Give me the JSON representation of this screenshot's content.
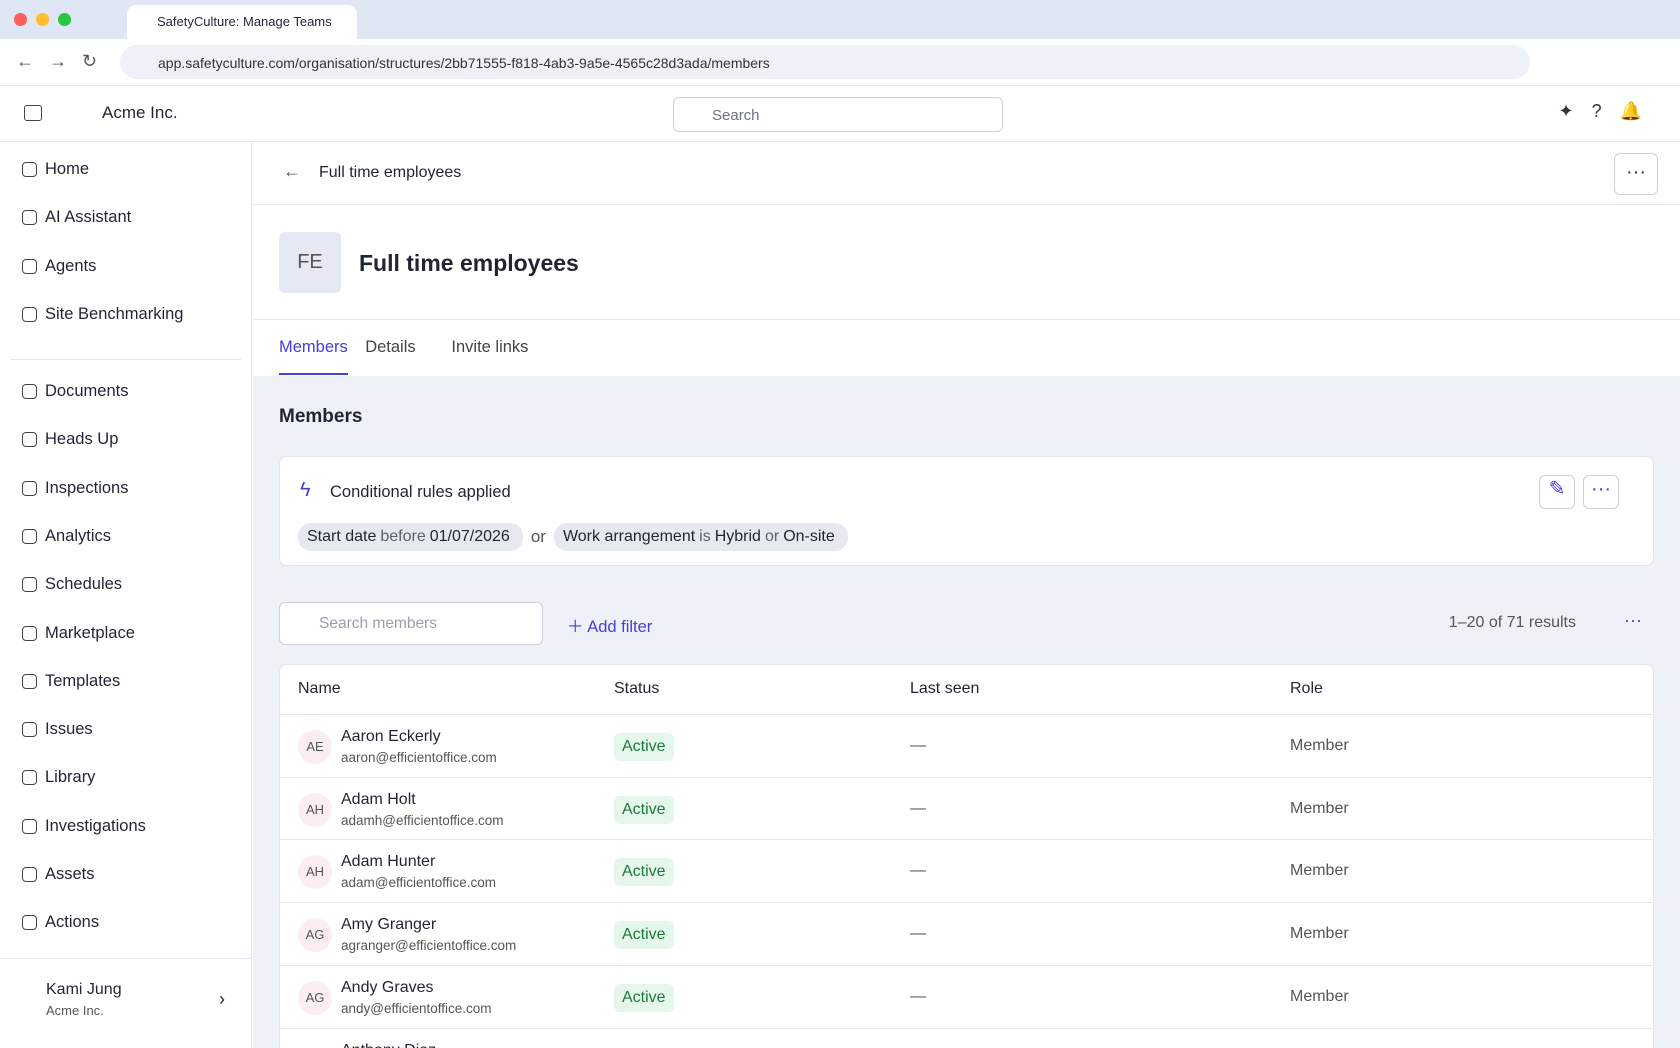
{
  "browser": {
    "tab_title": "SafetyCulture: Manage Teams",
    "url": "app.safetyculture.com/organisation/structures/2bb71555-f818-4ab3-9a5e-4565c28d3ada/members"
  },
  "topbar": {
    "org": "Acme Inc.",
    "search_placeholder": "Search"
  },
  "sidebar": {
    "nav": [
      "Home",
      "AI Assistant",
      "Agents",
      "Site Benchmarking",
      "Documents",
      "Heads Up",
      "Inspections",
      "Analytics",
      "Schedules",
      "Marketplace",
      "Templates",
      "Issues",
      "Library",
      "Investigations",
      "Assets",
      "Actions"
    ],
    "user_name": "Kami Jung",
    "user_org": "Acme Inc."
  },
  "breadcrumb": "Full time employees",
  "header": {
    "initials": "FE",
    "title": "Full time employees"
  },
  "tabs": [
    "Members",
    "Details",
    "Invite links"
  ],
  "section_title": "Members",
  "rules": {
    "title": "Conditional rules applied",
    "groups": [
      [
        "Start date",
        "before",
        "01/07/2026"
      ],
      [
        "Work arrangement",
        "is",
        "Hybrid",
        "or",
        "On-site"
      ]
    ],
    "joiner": "or"
  },
  "toolbar": {
    "search_placeholder": "Search members",
    "add_filter": "Add filter",
    "results": "1–20 of 71 results"
  },
  "table": {
    "columns": [
      "Name",
      "Status",
      "Last seen",
      "Role"
    ],
    "rows": [
      {
        "initials": "AE",
        "name": "Aaron Eckerly",
        "email": "aaron@efficientoffice.com",
        "status": "Active",
        "last_seen": "—",
        "role": "Member"
      },
      {
        "initials": "AH",
        "name": "Adam Holt",
        "email": "adamh@efficientoffice.com",
        "status": "Active",
        "last_seen": "—",
        "role": "Member"
      },
      {
        "initials": "AH",
        "name": "Adam Hunter",
        "email": "adam@efficientoffice.com",
        "status": "Active",
        "last_seen": "—",
        "role": "Member"
      },
      {
        "initials": "AG",
        "name": "Amy Granger",
        "email": "agranger@efficientoffice.com",
        "status": "Active",
        "last_seen": "—",
        "role": "Member"
      },
      {
        "initials": "AG",
        "name": "Andy Graves",
        "email": "andy@efficientoffice.com",
        "status": "Active",
        "last_seen": "—",
        "role": "Member"
      },
      {
        "name": "Anthony Diaz"
      }
    ]
  }
}
